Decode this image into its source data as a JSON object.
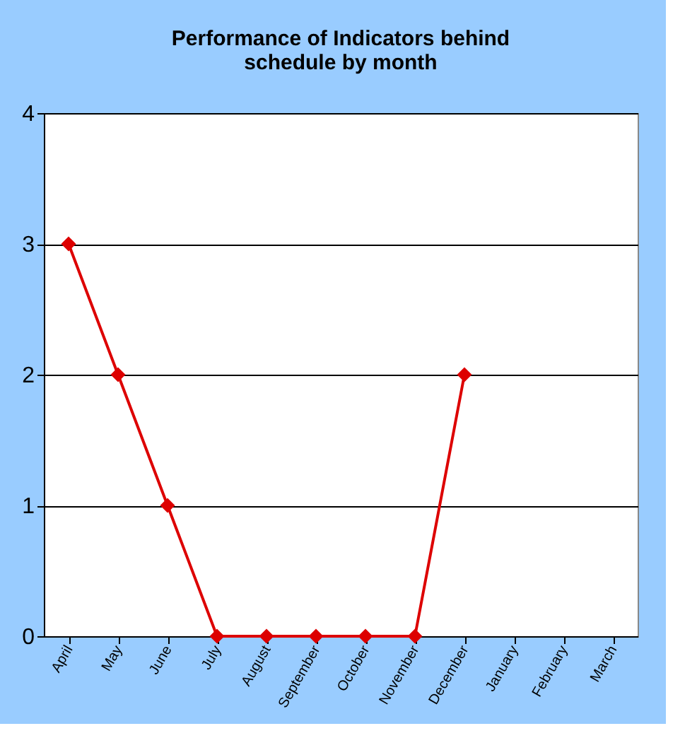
{
  "chart_data": {
    "type": "line",
    "title": "Performance of Indicators behind schedule by month",
    "categories": [
      "April",
      "May",
      "June",
      "July",
      "August",
      "September",
      "October",
      "November",
      "December",
      "January",
      "February",
      "March"
    ],
    "series": [
      {
        "color": "#dd0000",
        "values": [
          3,
          2,
          1,
          0,
          0,
          0,
          0,
          0,
          2,
          null,
          null,
          null
        ]
      }
    ],
    "ylim": [
      0,
      4
    ],
    "yticks": [
      0,
      1,
      2,
      3,
      4
    ],
    "grid": "y",
    "marker": "diamond",
    "line_style": "solid"
  }
}
